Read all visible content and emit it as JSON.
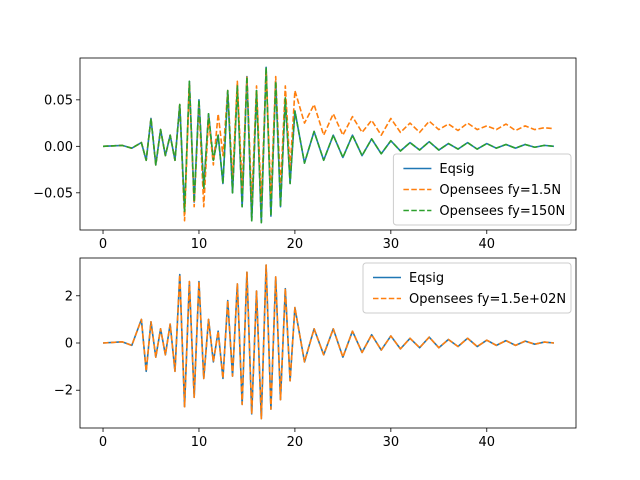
{
  "chart_data": [
    {
      "type": "line",
      "title": "",
      "xlabel": "",
      "ylabel": "",
      "xlim": [
        -2.4,
        49.3
      ],
      "ylim": [
        -0.09,
        0.095
      ],
      "xticks": [
        0,
        10,
        20,
        30,
        40
      ],
      "xtick_labels": [
        "0",
        "10",
        "20",
        "30",
        "40"
      ],
      "yticks": [
        -0.05,
        0.0,
        0.05
      ],
      "ytick_labels": [
        "−0.05",
        "0.00",
        "0.05"
      ],
      "grid": false,
      "legend_position": "lower-right",
      "series": [
        {
          "name": "Eqsig",
          "color": "#1f77b4",
          "style": "solid",
          "x": [
            0,
            2,
            3,
            4,
            4.5,
            5,
            5.5,
            6,
            6.5,
            7,
            7.5,
            8,
            8.5,
            9,
            9.5,
            10,
            10.5,
            11,
            11.5,
            12,
            12.5,
            13,
            13.5,
            14,
            14.5,
            15,
            15.5,
            16,
            16.5,
            17,
            17.5,
            18,
            18.5,
            19,
            19.5,
            20,
            21,
            22,
            23,
            24,
            25,
            26,
            27,
            28,
            29,
            30,
            31,
            32,
            33,
            34,
            35,
            36,
            37,
            38,
            39,
            40,
            41,
            42,
            43,
            44,
            45,
            46,
            47
          ],
          "y": [
            0,
            0.001,
            -0.002,
            0.004,
            -0.015,
            0.03,
            -0.02,
            0.018,
            -0.01,
            0.012,
            -0.015,
            0.045,
            -0.07,
            0.07,
            -0.06,
            0.05,
            -0.045,
            0.035,
            -0.015,
            0.012,
            -0.04,
            0.06,
            -0.05,
            0.065,
            -0.065,
            0.075,
            -0.08,
            0.06,
            -0.082,
            0.085,
            -0.075,
            0.07,
            -0.065,
            0.052,
            -0.04,
            0.038,
            -0.018,
            0.016,
            -0.015,
            0.012,
            -0.012,
            0.012,
            -0.01,
            0.008,
            -0.008,
            0.006,
            -0.005,
            0.004,
            -0.004,
            0.005,
            -0.004,
            0.003,
            -0.003,
            0.004,
            -0.003,
            0.003,
            -0.002,
            0.002,
            -0.002,
            0.002,
            -0.001,
            0.001,
            0
          ]
        },
        {
          "name": "Opensees fy=1.5N",
          "color": "#ff7f0e",
          "style": "dashed",
          "x": [
            0,
            2,
            3,
            4,
            4.5,
            5,
            5.5,
            6,
            6.5,
            7,
            7.5,
            8,
            8.5,
            9,
            9.5,
            10,
            10.5,
            11,
            11.5,
            12,
            12.5,
            13,
            13.5,
            14,
            14.5,
            15,
            15.5,
            16,
            16.5,
            17,
            17.5,
            18,
            18.5,
            19,
            19.5,
            20,
            21,
            22,
            23,
            24,
            25,
            26,
            27,
            28,
            29,
            30,
            31,
            32,
            33,
            34,
            35,
            36,
            37,
            38,
            39,
            40,
            41,
            42,
            43,
            44,
            45,
            46,
            47
          ],
          "y": [
            0,
            0.001,
            -0.002,
            0.004,
            -0.015,
            0.03,
            -0.02,
            0.018,
            -0.01,
            0.012,
            -0.015,
            0.045,
            -0.08,
            0.068,
            -0.065,
            0.045,
            -0.065,
            0.03,
            -0.02,
            0.035,
            -0.01,
            0.06,
            -0.035,
            0.07,
            -0.045,
            0.075,
            -0.06,
            0.065,
            -0.06,
            0.082,
            -0.055,
            0.075,
            -0.045,
            0.065,
            -0.025,
            0.06,
            0.025,
            0.045,
            0.012,
            0.035,
            0.012,
            0.032,
            0.015,
            0.028,
            0.012,
            0.03,
            0.015,
            0.025,
            0.015,
            0.027,
            0.018,
            0.024,
            0.017,
            0.025,
            0.018,
            0.022,
            0.018,
            0.024,
            0.017,
            0.022,
            0.018,
            0.02,
            0.019
          ]
        },
        {
          "name": "Opensees fy=150N",
          "color": "#2ca02c",
          "style": "dashed",
          "x": [
            0,
            2,
            3,
            4,
            4.5,
            5,
            5.5,
            6,
            6.5,
            7,
            7.5,
            8,
            8.5,
            9,
            9.5,
            10,
            10.5,
            11,
            11.5,
            12,
            12.5,
            13,
            13.5,
            14,
            14.5,
            15,
            15.5,
            16,
            16.5,
            17,
            17.5,
            18,
            18.5,
            19,
            19.5,
            20,
            21,
            22,
            23,
            24,
            25,
            26,
            27,
            28,
            29,
            30,
            31,
            32,
            33,
            34,
            35,
            36,
            37,
            38,
            39,
            40,
            41,
            42,
            43,
            44,
            45,
            46,
            47
          ],
          "y": [
            0,
            0.001,
            -0.002,
            0.004,
            -0.015,
            0.03,
            -0.02,
            0.018,
            -0.01,
            0.012,
            -0.015,
            0.045,
            -0.07,
            0.07,
            -0.06,
            0.05,
            -0.045,
            0.035,
            -0.015,
            0.012,
            -0.04,
            0.06,
            -0.05,
            0.065,
            -0.065,
            0.075,
            -0.08,
            0.06,
            -0.082,
            0.085,
            -0.075,
            0.07,
            -0.065,
            0.052,
            -0.04,
            0.038,
            -0.018,
            0.016,
            -0.015,
            0.012,
            -0.012,
            0.012,
            -0.01,
            0.008,
            -0.008,
            0.006,
            -0.005,
            0.004,
            -0.004,
            0.005,
            -0.004,
            0.003,
            -0.003,
            0.004,
            -0.003,
            0.003,
            -0.002,
            0.002,
            -0.002,
            0.002,
            -0.001,
            0.001,
            0
          ]
        }
      ]
    },
    {
      "type": "line",
      "title": "",
      "xlabel": "",
      "ylabel": "",
      "xlim": [
        -2.4,
        49.3
      ],
      "ylim": [
        -3.6,
        3.6
      ],
      "xticks": [
        0,
        10,
        20,
        30,
        40
      ],
      "xtick_labels": [
        "0",
        "10",
        "20",
        "30",
        "40"
      ],
      "yticks": [
        -2,
        0,
        2
      ],
      "ytick_labels": [
        "−2",
        "0",
        "2"
      ],
      "grid": false,
      "legend_position": "upper-right",
      "series": [
        {
          "name": "Eqsig",
          "color": "#1f77b4",
          "style": "solid",
          "x": [
            0,
            2,
            3,
            4,
            4.5,
            5,
            5.5,
            6,
            6.5,
            7,
            7.5,
            8,
            8.5,
            9,
            9.5,
            10,
            10.5,
            11,
            11.5,
            12,
            12.5,
            13,
            13.5,
            14,
            14.5,
            15,
            15.5,
            16,
            16.5,
            17,
            17.5,
            18,
            18.5,
            19,
            19.5,
            20,
            21,
            22,
            23,
            24,
            25,
            26,
            27,
            28,
            29,
            30,
            31,
            32,
            33,
            34,
            35,
            36,
            37,
            38,
            39,
            40,
            41,
            42,
            43,
            44,
            45,
            46,
            47
          ],
          "y": [
            0,
            0.05,
            -0.1,
            1.0,
            -1.2,
            0.9,
            -0.6,
            0.6,
            -0.5,
            0.8,
            -1.2,
            2.9,
            -2.7,
            2.6,
            -2.3,
            2.6,
            -1.5,
            1.0,
            -0.8,
            0.5,
            -1.5,
            1.8,
            -1.4,
            2.5,
            -2.6,
            3.0,
            -3.0,
            2.2,
            -3.2,
            3.3,
            -2.8,
            2.8,
            -2.4,
            2.3,
            -1.6,
            1.5,
            -0.8,
            0.6,
            -0.5,
            0.6,
            -0.6,
            0.5,
            -0.4,
            0.35,
            -0.3,
            0.3,
            -0.25,
            0.2,
            -0.2,
            0.25,
            -0.2,
            0.15,
            -0.15,
            0.2,
            -0.15,
            0.12,
            -0.1,
            0.1,
            -0.1,
            0.08,
            -0.05,
            0.04,
            0
          ]
        },
        {
          "name": "Opensees fy=1.5e+02N",
          "color": "#ff7f0e",
          "style": "dashed",
          "x": [
            0,
            2,
            3,
            4,
            4.5,
            5,
            5.5,
            6,
            6.5,
            7,
            7.5,
            8,
            8.5,
            9,
            9.5,
            10,
            10.5,
            11,
            11.5,
            12,
            12.5,
            13,
            13.5,
            14,
            14.5,
            15,
            15.5,
            16,
            16.5,
            17,
            17.5,
            18,
            18.5,
            19,
            19.5,
            20,
            21,
            22,
            23,
            24,
            25,
            26,
            27,
            28,
            29,
            30,
            31,
            32,
            33,
            34,
            35,
            36,
            37,
            38,
            39,
            40,
            41,
            42,
            43,
            44,
            45,
            46,
            47
          ],
          "y": [
            0,
            0.05,
            -0.1,
            1.0,
            -1.2,
            0.9,
            -0.6,
            0.6,
            -0.5,
            0.8,
            -1.2,
            2.9,
            -2.7,
            2.6,
            -2.3,
            2.6,
            -1.5,
            1.0,
            -0.8,
            0.5,
            -1.5,
            1.8,
            -1.4,
            2.5,
            -2.6,
            3.0,
            -3.0,
            2.2,
            -3.2,
            3.3,
            -2.8,
            2.8,
            -2.4,
            2.3,
            -1.6,
            1.5,
            -0.8,
            0.6,
            -0.5,
            0.6,
            -0.6,
            0.5,
            -0.4,
            0.35,
            -0.3,
            0.3,
            -0.25,
            0.2,
            -0.2,
            0.25,
            -0.2,
            0.15,
            -0.15,
            0.2,
            -0.15,
            0.12,
            -0.1,
            0.1,
            -0.1,
            0.08,
            -0.05,
            0.04,
            0
          ]
        }
      ]
    }
  ]
}
